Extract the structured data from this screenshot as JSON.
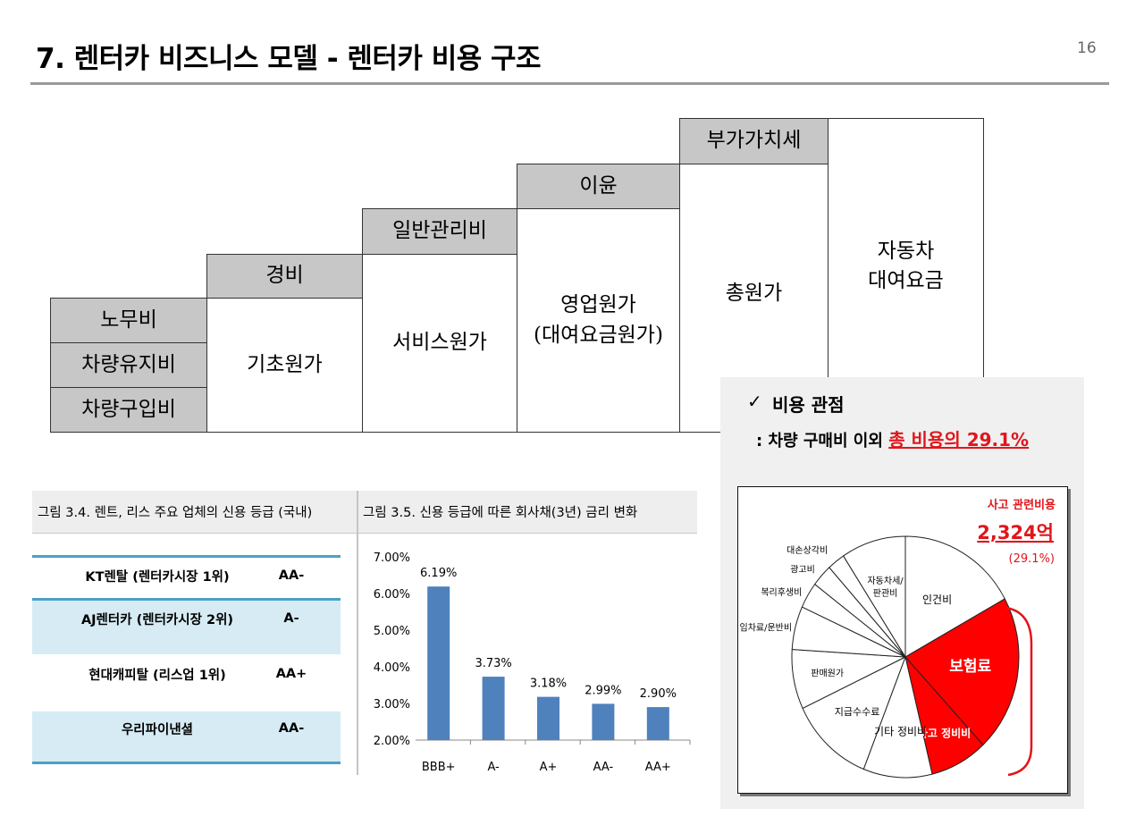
{
  "page": {
    "title": "7. 렌터카 비즈니스 모델 - 렌터카 비용 구조",
    "page_number": "16"
  },
  "diagram": {
    "labor": "노무비",
    "vehicle_maintenance": "차량유지비",
    "vehicle_purchase": "차량구입비",
    "expenses": "경비",
    "basic_cost": "기초원가",
    "general_admin": "일반관리비",
    "service_cost": "서비스원가",
    "profit": "이윤",
    "operating_cost_line1": "영업원가",
    "operating_cost_line2": "(대여요금원가)",
    "vat": "부가가치세",
    "total_cost": "총원가",
    "rental_fee_line1": "자동차",
    "rental_fee_line2": "대여요금"
  },
  "rating_table": {
    "caption": "그림 3.4. 렌트, 리스 주요 업체의 신용 등급 (국내)",
    "rows": [
      {
        "name": "KT렌탈 (렌터카시장 1위)",
        "rating": "AA-"
      },
      {
        "name": "AJ렌터카 (렌터카시장 2위)",
        "rating": "A-"
      },
      {
        "name": "현대캐피탈 (리스업 1위)",
        "rating": "AA+"
      },
      {
        "name": "우리파이낸셜",
        "rating": "AA-"
      }
    ]
  },
  "chart_caption": "그림 3.5. 신용 등급에 따른 회사채(3년) 금리 변화",
  "chart_data": [
    {
      "type": "bar",
      "title": "그림 3.5. 신용 등급에 따른 회사채(3년) 금리 변화",
      "categories": [
        "BBB+",
        "A-",
        "A+",
        "AA-",
        "AA+"
      ],
      "values": [
        6.19,
        3.73,
        3.18,
        2.99,
        2.9
      ],
      "value_labels": [
        "6.19%",
        "3.73%",
        "3.18%",
        "2.99%",
        "2.90%"
      ],
      "ylim": [
        2.0,
        7.0
      ],
      "yticks": [
        2,
        3,
        4,
        5,
        6,
        7
      ],
      "ytick_labels": [
        "2.00%",
        "3.00%",
        "4.00%",
        "5.00%",
        "6.00%",
        "7.00%"
      ],
      "bar_color": "#4f81bd",
      "grid": false,
      "legend": "none"
    },
    {
      "type": "pie",
      "slices": [
        {
          "label": "인건비",
          "fraction": 0.17,
          "color": "#ffffff"
        },
        {
          "label": "보험료",
          "fraction": 0.21,
          "color": "#ff0000"
        },
        {
          "label": "사고 정비비",
          "fraction": 0.082,
          "color": "#ff0000"
        },
        {
          "label": "기타 정비비",
          "fraction": 0.098,
          "color": "#ffffff"
        },
        {
          "label": "지급수수료",
          "fraction": 0.12,
          "color": "#ffffff"
        },
        {
          "label": "판매원가",
          "fraction": 0.08,
          "color": "#ffffff"
        },
        {
          "label": "임차료/운반비",
          "fraction": 0.058,
          "color": "#ffffff"
        },
        {
          "label": "복리후생비",
          "fraction": 0.035,
          "color": "#ffffff"
        },
        {
          "label": "광고비",
          "fraction": 0.03,
          "color": "#ffffff"
        },
        {
          "label": "대손상각비",
          "fraction": 0.025,
          "color": "#ffffff"
        },
        {
          "label": "자동차세/판관비",
          "fraction": 0.092,
          "color": "#ffffff"
        }
      ],
      "legend": "none"
    }
  ],
  "cost_panel": {
    "check_mark": "✓",
    "heading": "비용 관점",
    "subtitle_prefix": ": 차량 구매비 이외 ",
    "subtitle_highlight": "총 비용의 29.1%",
    "accident_label": "사고 관련비용",
    "accident_amount": "2,324억",
    "accident_pct": "(29.1%)",
    "accent_color": "#e0161b"
  }
}
